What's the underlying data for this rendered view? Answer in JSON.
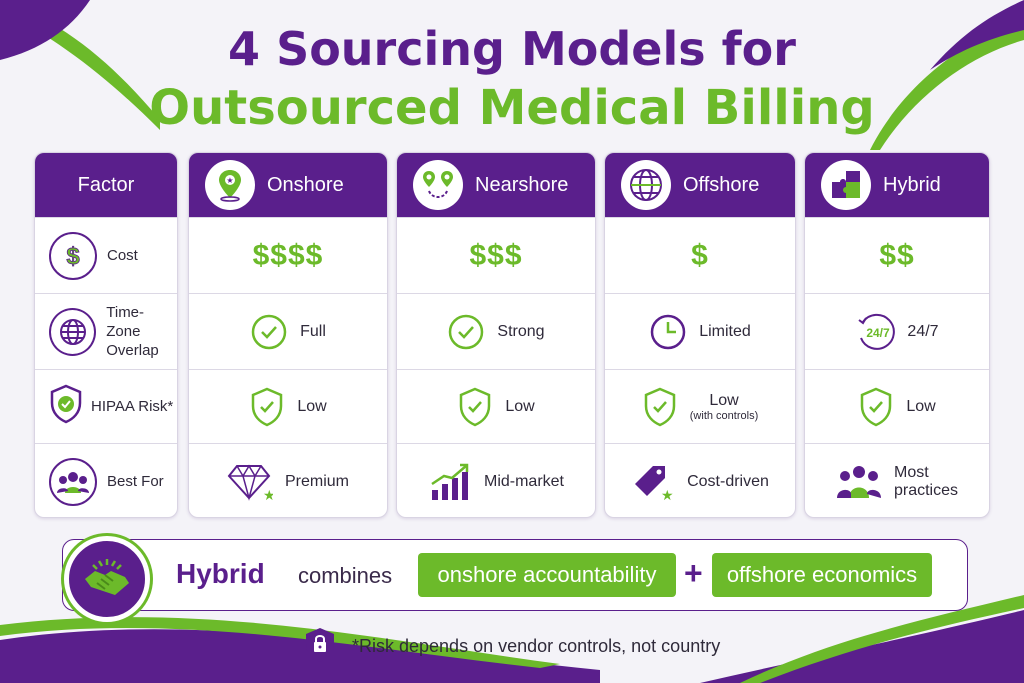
{
  "title": {
    "line1": "4 Sourcing Models for",
    "line2": "Outsourced Medical Billing"
  },
  "colors": {
    "purple": "#5a1f8c",
    "green": "#6cba2a"
  },
  "factor_column": {
    "header": "Factor",
    "rows": [
      {
        "label": "Cost",
        "icon": "dollar-icon"
      },
      {
        "label_line1": "Time-Zone",
        "label_line2": "Overlap",
        "icon": "globe-icon"
      },
      {
        "label": "HIPAA Risk*",
        "icon": "shield-check-icon"
      },
      {
        "label": "Best For",
        "icon": "people-icon"
      }
    ]
  },
  "models": [
    {
      "name": "Onshore",
      "header_icon": "location-pin-icon",
      "cost": "$$$$",
      "overlap": "Full",
      "overlap_icon": "check-circle-icon",
      "risk": "Low",
      "risk_sub": "",
      "risk_icon": "shield-check-icon",
      "best_for": "Premium",
      "best_for_icon": "diamond-icon"
    },
    {
      "name": "Nearshore",
      "header_icon": "route-pins-icon",
      "cost": "$$$",
      "overlap": "Strong",
      "overlap_icon": "check-circle-icon",
      "risk": "Low",
      "risk_sub": "",
      "risk_icon": "shield-check-icon",
      "best_for": "Mid-market",
      "best_for_icon": "growth-chart-icon"
    },
    {
      "name": "Offshore",
      "header_icon": "globe-icon",
      "cost": "$",
      "overlap": "Limited",
      "overlap_icon": "clock-icon",
      "risk": "Low",
      "risk_sub": "(with controls)",
      "risk_icon": "shield-check-icon",
      "best_for": "Cost-driven",
      "best_for_icon": "price-tag-icon"
    },
    {
      "name": "Hybrid",
      "header_icon": "puzzle-icon",
      "cost": "$$",
      "overlap": "24/7",
      "overlap_icon": "24-7-icon",
      "overlap_icon_text": "24/7",
      "risk": "Low",
      "risk_sub": "",
      "risk_icon": "shield-check-icon",
      "best_for_line1": "Most",
      "best_for_line2": "practices",
      "best_for_icon": "team-icon"
    }
  ],
  "banner": {
    "icon": "handshake-icon",
    "word": "Hybrid",
    "connector": "combines",
    "pill1": "onshore accountability",
    "plus": "+",
    "pill2": "offshore economics"
  },
  "footnote": {
    "icon": "lock-shield-icon",
    "text": "*Risk depends on vendor controls, not country"
  }
}
